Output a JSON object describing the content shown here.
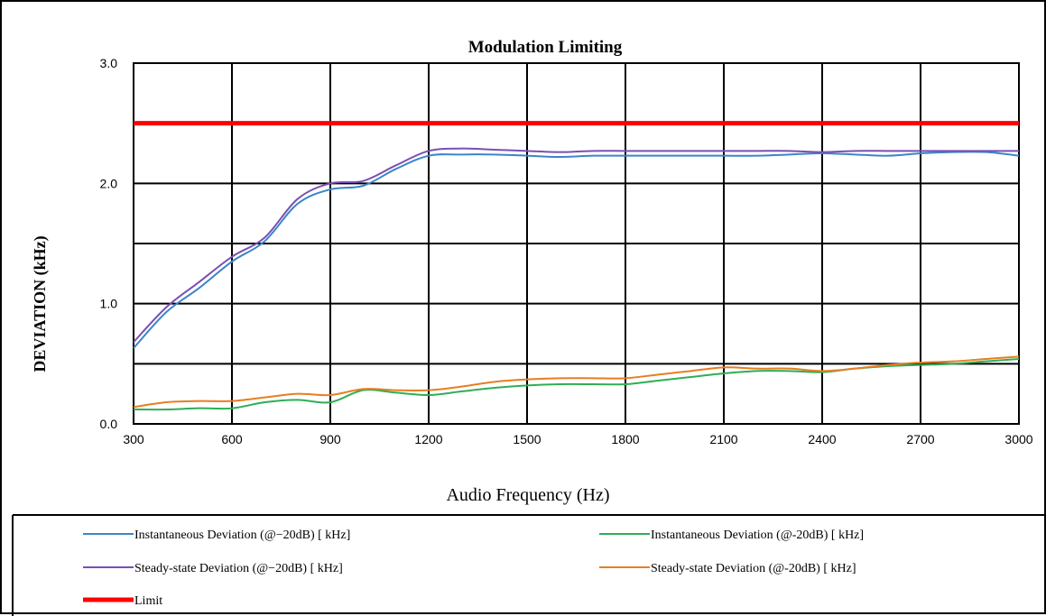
{
  "chart_data": {
    "type": "line",
    "title": "Modulation Limiting",
    "xlabel": "Audio Frequency (Hz)",
    "ylabel": "DEVIATION (kHz)",
    "xlim": [
      300,
      3000
    ],
    "ylim": [
      0,
      3
    ],
    "x_ticks": [
      "300",
      "600",
      "900",
      "1200",
      "1500",
      "1800",
      "2100",
      "2400",
      "2700",
      "3000"
    ],
    "y_ticks": [
      "0.0",
      "1.0",
      "2.0",
      "3.0"
    ],
    "grid": true,
    "legend_position": "bottom",
    "series": [
      {
        "name": "Instantaneous Deviation (@−20dB) [ kHz]",
        "color": "#3a86c8",
        "x": [
          300,
          400,
          500,
          600,
          700,
          800,
          900,
          1000,
          1100,
          1200,
          1300,
          1400,
          1500,
          1600,
          1700,
          1800,
          1900,
          2000,
          2100,
          2200,
          2300,
          2400,
          2500,
          2600,
          2700,
          2800,
          2900,
          3000
        ],
        "y": [
          0.63,
          0.93,
          1.13,
          1.35,
          1.52,
          1.83,
          1.95,
          1.98,
          2.12,
          2.23,
          2.24,
          2.24,
          2.23,
          2.22,
          2.23,
          2.23,
          2.23,
          2.23,
          2.23,
          2.23,
          2.24,
          2.25,
          2.24,
          2.23,
          2.25,
          2.26,
          2.26,
          2.23
        ]
      },
      {
        "name": "Steady-state Deviation (@−20dB) [ kHz]",
        "color": "#7a4fb3",
        "x": [
          300,
          400,
          500,
          600,
          700,
          800,
          900,
          1000,
          1100,
          1200,
          1300,
          1400,
          1500,
          1600,
          1700,
          1800,
          1900,
          2000,
          2100,
          2200,
          2300,
          2400,
          2500,
          2600,
          2700,
          2800,
          2900,
          3000
        ],
        "y": [
          0.68,
          0.97,
          1.18,
          1.39,
          1.55,
          1.87,
          2.0,
          2.02,
          2.15,
          2.27,
          2.29,
          2.28,
          2.27,
          2.26,
          2.27,
          2.27,
          2.27,
          2.27,
          2.27,
          2.27,
          2.27,
          2.26,
          2.27,
          2.27,
          2.27,
          2.27,
          2.27,
          2.27
        ]
      },
      {
        "name": "Instantaneous Deviation (@-20dB) [ kHz]",
        "color": "#2fae55",
        "x": [
          300,
          400,
          500,
          600,
          700,
          800,
          900,
          1000,
          1100,
          1200,
          1300,
          1400,
          1500,
          1600,
          1700,
          1800,
          1900,
          2000,
          2100,
          2200,
          2300,
          2400,
          2500,
          2600,
          2700,
          2800,
          2900,
          3000
        ],
        "y": [
          0.12,
          0.12,
          0.13,
          0.13,
          0.18,
          0.2,
          0.18,
          0.28,
          0.26,
          0.24,
          0.27,
          0.3,
          0.32,
          0.33,
          0.33,
          0.33,
          0.36,
          0.39,
          0.42,
          0.44,
          0.44,
          0.43,
          0.46,
          0.48,
          0.49,
          0.5,
          0.52,
          0.54
        ]
      },
      {
        "name": "Steady-state Deviation (@-20dB) [ kHz]",
        "color": "#e87d22",
        "x": [
          300,
          400,
          500,
          600,
          700,
          800,
          900,
          1000,
          1100,
          1200,
          1300,
          1400,
          1500,
          1600,
          1700,
          1800,
          1900,
          2000,
          2100,
          2200,
          2300,
          2400,
          2500,
          2600,
          2700,
          2800,
          2900,
          3000
        ],
        "y": [
          0.14,
          0.18,
          0.19,
          0.19,
          0.22,
          0.25,
          0.24,
          0.29,
          0.28,
          0.28,
          0.31,
          0.35,
          0.37,
          0.38,
          0.38,
          0.38,
          0.41,
          0.44,
          0.47,
          0.46,
          0.46,
          0.44,
          0.46,
          0.49,
          0.51,
          0.52,
          0.54,
          0.56
        ]
      },
      {
        "name": "Limit",
        "color": "#ff0000",
        "x": [
          300,
          3000
        ],
        "y": [
          2.5,
          2.5
        ]
      }
    ]
  }
}
